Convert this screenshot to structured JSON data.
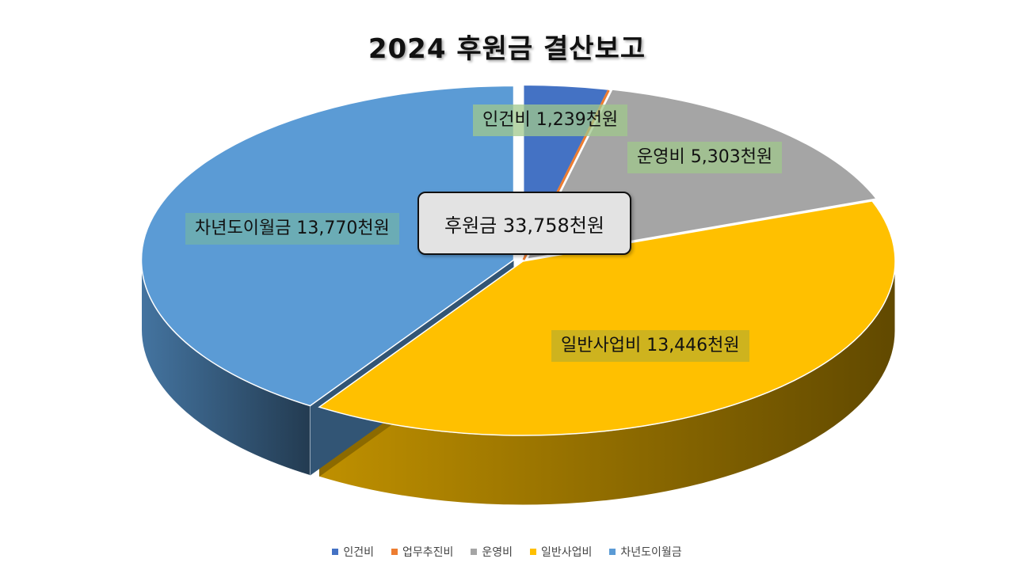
{
  "chart_data": {
    "type": "pie",
    "title": "2024 후원금 결산보고",
    "categories": [
      "인건비",
      "업무추진비",
      "운영비",
      "일반사업비",
      "차년도이월금"
    ],
    "values": [
      1239,
      0,
      5303,
      13446,
      13770
    ],
    "colors": [
      "#4472c4",
      "#ed7d31",
      "#a5a5a5",
      "#ffc000",
      "#5b9bd5"
    ],
    "data_labels": [
      "인건비 1,239천원",
      "",
      "운영비 5,303천원",
      "일반사업비 13,446천원",
      "차년도이월금 13,770천원"
    ],
    "label_backgrounds": [
      "rgba(160,200,140,0.75)",
      "",
      "rgba(160,200,140,0.75)",
      "rgba(190,175,40,0.75)",
      "rgba(110,175,175,0.85)"
    ],
    "legend_position": "bottom",
    "three_d": true
  },
  "total_label": "후원금 33,758천원"
}
